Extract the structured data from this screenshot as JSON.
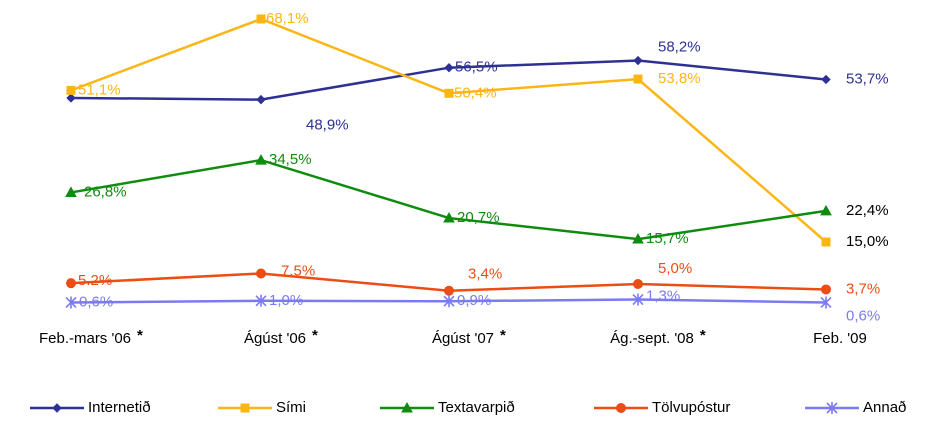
{
  "chart_data": {
    "type": "line",
    "categories": [
      "Feb.-mars '06",
      "Ágúst '06",
      "Ágúst '07",
      "Ág.-sept. '08",
      "Feb. '09"
    ],
    "category_notes": [
      "*",
      "*",
      "*",
      "*",
      null
    ],
    "series": [
      {
        "name": "Internetið",
        "color": "#2e3192",
        "marker": "diamond",
        "values": [
          49.3,
          48.9,
          56.5,
          58.2,
          53.7
        ],
        "value_labels": [
          null,
          "48,9%",
          "56,5%",
          "58,2%",
          "53,7%"
        ]
      },
      {
        "name": "Sími",
        "color": "#fbb615",
        "marker": "square",
        "values": [
          51.1,
          68.1,
          50.4,
          53.8,
          15.0
        ],
        "value_labels": [
          "51,1%",
          "68,1%",
          "50,4%",
          "53,8%",
          "15,0%"
        ]
      },
      {
        "name": "Textavarpið",
        "color": "#0f8c0f",
        "marker": "triangle",
        "values": [
          26.8,
          34.5,
          20.7,
          15.7,
          22.4
        ],
        "value_labels": [
          "26,8%",
          "34,5%",
          "20,7%",
          "15,7%",
          "22,4%"
        ]
      },
      {
        "name": "Tölvupóstur",
        "color": "#ec4d14",
        "marker": "circle",
        "values": [
          5.2,
          7.5,
          3.4,
          5.0,
          3.7
        ],
        "value_labels": [
          "5.2%",
          "7,5%",
          "3,4%",
          "5,0%",
          "3,7%"
        ]
      },
      {
        "name": "Annað",
        "color": "#7b7bf0",
        "marker": "star",
        "values": [
          0.6,
          1.0,
          0.9,
          1.3,
          0.6
        ],
        "value_labels": [
          "0,6%",
          "1,0%",
          "0,9%",
          "1,3%",
          "0,6%"
        ]
      }
    ]
  }
}
